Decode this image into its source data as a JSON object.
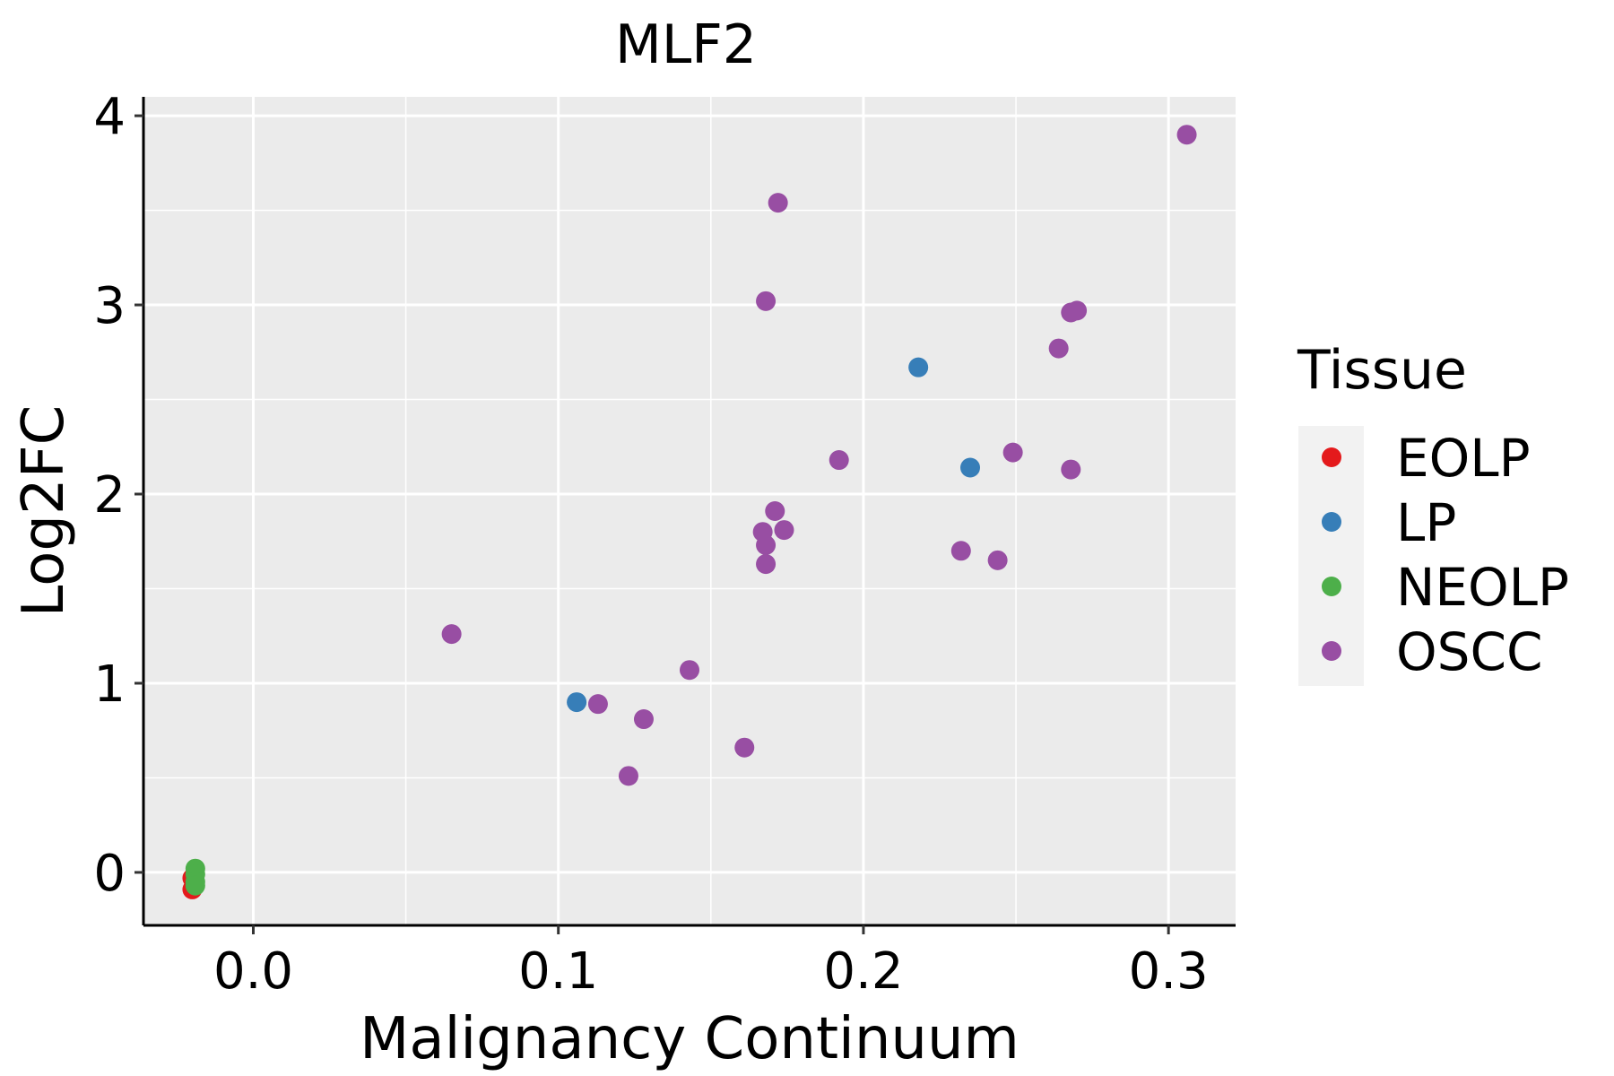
{
  "chart_data": {
    "type": "scatter",
    "title": "MLF2",
    "xlabel": "Malignancy Continuum",
    "ylabel": "Log2FC",
    "xlim": [
      -0.036,
      0.322
    ],
    "ylim": [
      -0.28,
      4.1
    ],
    "x_ticks": [
      0.0,
      0.1,
      0.2,
      0.3
    ],
    "x_tick_labels": [
      "0.0",
      "0.1",
      "0.2",
      "0.3"
    ],
    "y_ticks": [
      0,
      1,
      2,
      3,
      4
    ],
    "y_tick_labels": [
      "0",
      "1",
      "2",
      "3",
      "4"
    ],
    "grid": true,
    "legend": {
      "title": "Tissue",
      "position": "right",
      "entries": [
        {
          "name": "EOLP",
          "color": "#E41A1C"
        },
        {
          "name": "LP",
          "color": "#377EB8"
        },
        {
          "name": "NEOLP",
          "color": "#4DAF4A"
        },
        {
          "name": "OSCC",
          "color": "#984EA3"
        }
      ]
    },
    "series": [
      {
        "name": "EOLP",
        "color": "#E41A1C",
        "points": [
          [
            -0.02,
            -0.03
          ],
          [
            -0.02,
            -0.09
          ]
        ]
      },
      {
        "name": "LP",
        "color": "#377EB8",
        "points": [
          [
            0.106,
            0.9
          ],
          [
            0.218,
            2.67
          ],
          [
            0.235,
            2.14
          ]
        ]
      },
      {
        "name": "NEOLP",
        "color": "#4DAF4A",
        "points": [
          [
            -0.019,
            0.02
          ],
          [
            -0.019,
            -0.01
          ],
          [
            -0.019,
            -0.05
          ],
          [
            -0.019,
            -0.07
          ]
        ]
      },
      {
        "name": "OSCC",
        "color": "#984EA3",
        "points": [
          [
            0.065,
            1.26
          ],
          [
            0.113,
            0.89
          ],
          [
            0.123,
            0.51
          ],
          [
            0.128,
            0.81
          ],
          [
            0.143,
            1.07
          ],
          [
            0.161,
            0.66
          ],
          [
            0.167,
            1.8
          ],
          [
            0.168,
            1.73
          ],
          [
            0.168,
            1.63
          ],
          [
            0.168,
            3.02
          ],
          [
            0.171,
            1.91
          ],
          [
            0.172,
            3.54
          ],
          [
            0.174,
            1.81
          ],
          [
            0.192,
            2.18
          ],
          [
            0.232,
            1.7
          ],
          [
            0.244,
            1.65
          ],
          [
            0.249,
            2.22
          ],
          [
            0.264,
            2.77
          ],
          [
            0.268,
            2.13
          ],
          [
            0.268,
            2.96
          ],
          [
            0.27,
            2.97
          ],
          [
            0.306,
            3.9
          ]
        ]
      }
    ]
  }
}
